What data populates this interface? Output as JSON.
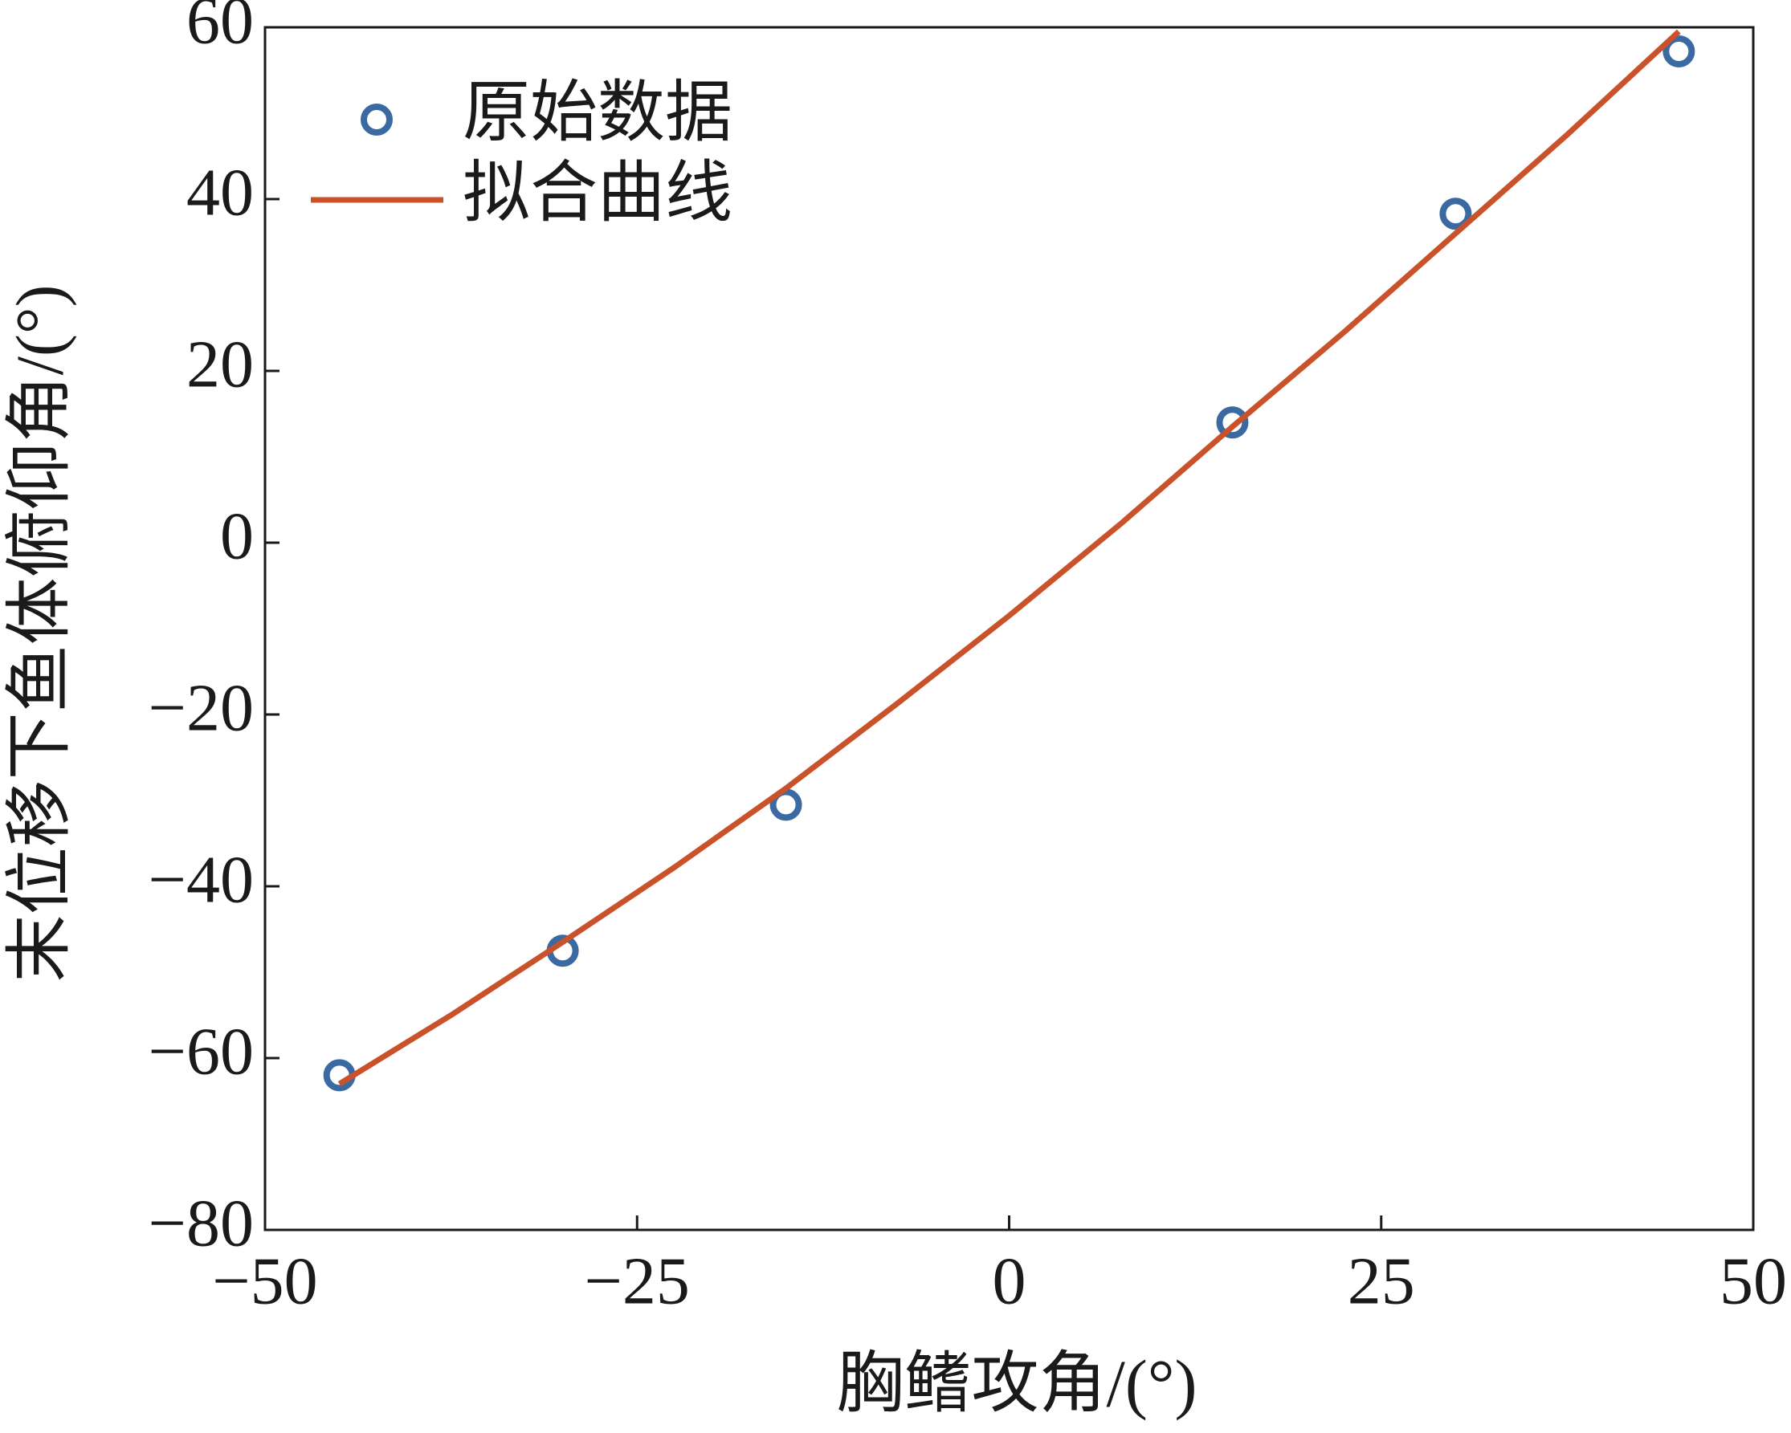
{
  "chart_data": {
    "type": "scatter",
    "xlabel": "胸鳍攻角/(°)",
    "ylabel": "末位移下鱼体俯仰角/(°)",
    "xlim": [
      -50,
      50
    ],
    "ylim": [
      -80,
      60
    ],
    "xticks": [
      {
        "value": -50,
        "label": "−50"
      },
      {
        "value": -25,
        "label": "−25"
      },
      0,
      25,
      50
    ],
    "yticks": [
      {
        "value": -80,
        "label": "−80"
      },
      {
        "value": -60,
        "label": "−60"
      },
      {
        "value": -40,
        "label": "−40"
      },
      {
        "value": -20,
        "label": "−20"
      },
      0,
      20,
      40,
      60
    ],
    "legend": "upper left",
    "series": [
      {
        "name": "原始数据",
        "color": "#3b6aa3",
        "marker": "circle",
        "x": [
          -45,
          -30,
          -15,
          15,
          30,
          45
        ],
        "values": [
          -62,
          -47.5,
          -30.5,
          14,
          38.3,
          57.2
        ]
      },
      {
        "name": "拟合曲线",
        "color": "#c9522b",
        "marker": "line",
        "x": [
          -45,
          -37.5,
          -30,
          -22.5,
          -15,
          -7.5,
          0,
          7.5,
          15,
          22.5,
          30,
          37.5,
          45
        ],
        "values": [
          -63,
          -55,
          -46.5,
          -37.8,
          -28.6,
          -18.7,
          -8.5,
          2.2,
          13.5,
          24.5,
          36,
          47.5,
          59.5
        ]
      }
    ]
  }
}
